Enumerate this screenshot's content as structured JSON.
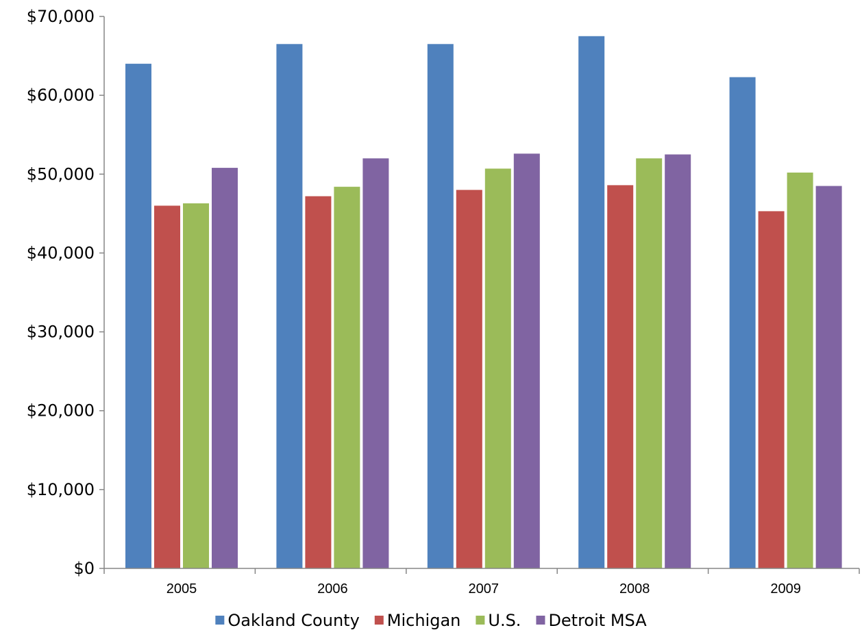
{
  "chart_data": {
    "type": "bar",
    "title": "",
    "xlabel": "",
    "ylabel": "",
    "categories": [
      "2005",
      "2006",
      "2007",
      "2008",
      "2009"
    ],
    "series": [
      {
        "name": "Oakland County",
        "color": "#4F81BD",
        "values": [
          64000,
          66500,
          66500,
          67500,
          62300
        ]
      },
      {
        "name": "Michigan",
        "color": "#C0504D",
        "values": [
          46000,
          47200,
          48000,
          48600,
          45300
        ]
      },
      {
        "name": "U.S.",
        "color": "#9BBB59",
        "values": [
          46300,
          48400,
          50700,
          52000,
          50200
        ]
      },
      {
        "name": "Detroit MSA",
        "color": "#8064A2",
        "values": [
          50800,
          52000,
          52600,
          52500,
          48500
        ]
      }
    ],
    "ylim": [
      0,
      70000
    ],
    "yticks": [
      "$0",
      "$10,000",
      "$20,000",
      "$30,000",
      "$40,000",
      "$50,000",
      "$60,000",
      "$70,000"
    ],
    "grid": false,
    "legend_position": "bottom"
  }
}
